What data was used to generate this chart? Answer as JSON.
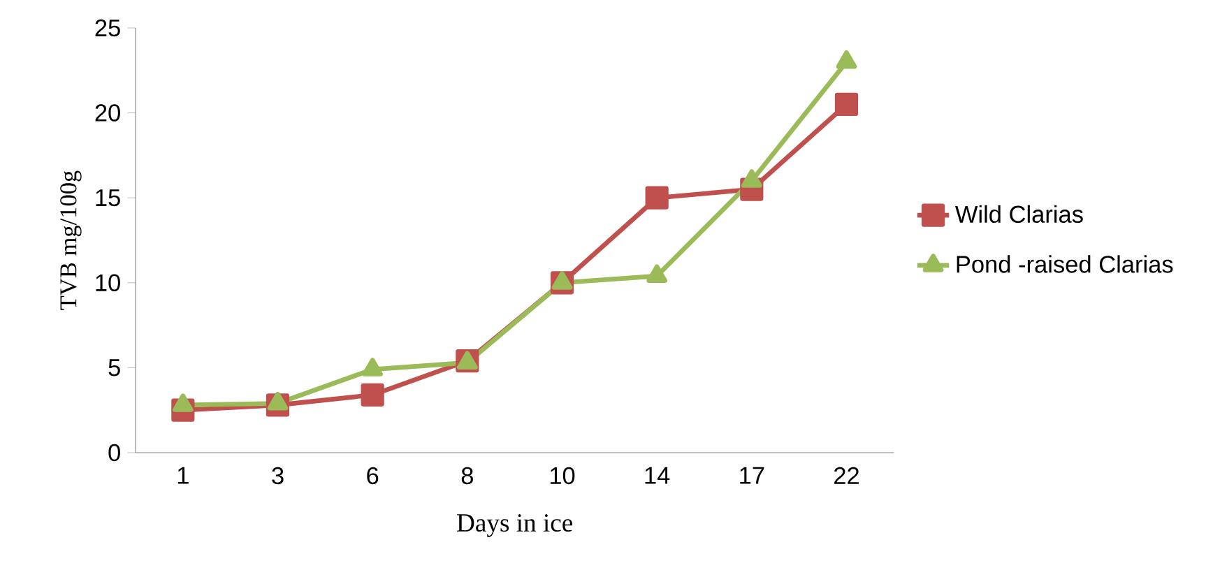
{
  "chart_data": {
    "type": "line",
    "xlabel": "Days in ice",
    "ylabel": "TVB mg/100g",
    "categories": [
      "1",
      "3",
      "6",
      "8",
      "10",
      "14",
      "17",
      "22"
    ],
    "ylim": [
      0,
      25
    ],
    "yticks": [
      0,
      5,
      10,
      15,
      20,
      25
    ],
    "grid": false,
    "legend": "right",
    "series": [
      {
        "name": "Wild Clarias",
        "color": "#c0504d",
        "marker": "square",
        "values": [
          2.5,
          2.8,
          3.4,
          5.4,
          10,
          15,
          15.5,
          20.5
        ]
      },
      {
        "name": "Pond -raised Clarias",
        "color": "#9bbb59",
        "marker": "triangle",
        "values": [
          2.8,
          2.9,
          4.9,
          5.3,
          10,
          10.4,
          16,
          23
        ]
      }
    ]
  }
}
